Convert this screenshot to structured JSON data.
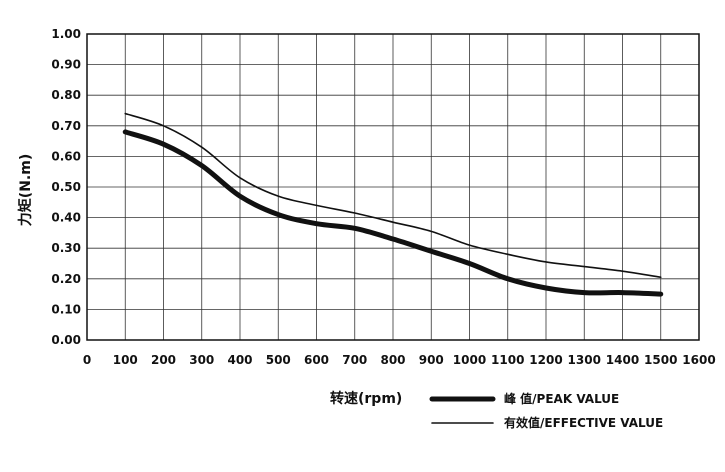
{
  "chart_data": {
    "type": "line",
    "title": "",
    "xlabel": "转速(rpm)",
    "ylabel": "力矩(N.m)",
    "xlim": [
      0,
      1600
    ],
    "ylim": [
      0,
      1.0
    ],
    "grid": true,
    "legend_position": "bottom-center",
    "x_ticks": [
      "0",
      "100",
      "200",
      "300",
      "400",
      "500",
      "600",
      "700",
      "800",
      "900",
      "1000",
      "1100",
      "1200",
      "1300",
      "1400",
      "1500",
      "1600"
    ],
    "y_ticks": [
      "0.00",
      "0.10",
      "0.20",
      "0.30",
      "0.40",
      "0.50",
      "0.60",
      "0.70",
      "0.80",
      "0.90",
      "1.00"
    ],
    "x": [
      100,
      200,
      300,
      400,
      500,
      600,
      700,
      800,
      900,
      1000,
      1100,
      1200,
      1300,
      1400,
      1500
    ],
    "series": [
      {
        "name": "峰 值/PEAK VALUE",
        "values": [
          0.68,
          0.64,
          0.57,
          0.47,
          0.41,
          0.38,
          0.365,
          0.33,
          0.29,
          0.25,
          0.2,
          0.17,
          0.155,
          0.155,
          0.15
        ],
        "style": "thick",
        "color": "#111111"
      },
      {
        "name": "有效值/EFFECTIVE VALUE",
        "values": [
          0.74,
          0.7,
          0.63,
          0.53,
          0.47,
          0.44,
          0.415,
          0.385,
          0.355,
          0.31,
          0.28,
          0.255,
          0.24,
          0.225,
          0.205
        ],
        "style": "thin",
        "color": "#111111"
      }
    ]
  }
}
